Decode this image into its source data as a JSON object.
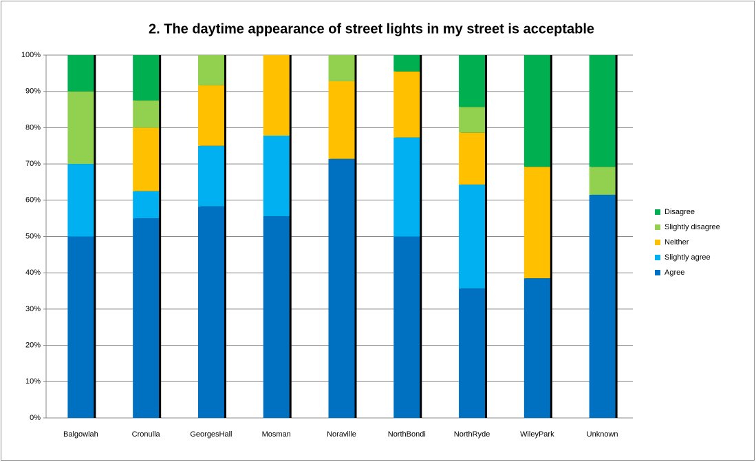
{
  "chart_data": {
    "type": "stacked_bar",
    "title": "2. The daytime appearance of street lights in my street is acceptable",
    "categories": [
      "Balgowlah",
      "Cronulla",
      "GeorgesHall",
      "Mosman",
      "Noraville",
      "NorthBondi",
      "NorthRyde",
      "WileyPark",
      "Unknown"
    ],
    "series": [
      {
        "name": "Agree",
        "color": "#0070c0",
        "values": [
          50,
          55,
          58.3,
          55.6,
          71.4,
          50,
          35.7,
          38.5,
          61.5
        ]
      },
      {
        "name": "Slightly agree",
        "color": "#00b0f0",
        "values": [
          20,
          7.5,
          16.7,
          22.2,
          0,
          27.3,
          28.6,
          0,
          0
        ]
      },
      {
        "name": "Neither",
        "color": "#ffc000",
        "values": [
          0,
          17.5,
          16.7,
          22.2,
          21.4,
          18.2,
          14.3,
          30.7,
          0
        ]
      },
      {
        "name": "Slightly disagree",
        "color": "#92d050",
        "values": [
          20,
          7.5,
          8.3,
          0,
          7.2,
          0,
          7.1,
          0,
          7.7
        ]
      },
      {
        "name": "Disagree",
        "color": "#00b050",
        "values": [
          10,
          12.5,
          0,
          0,
          0,
          4.5,
          14.3,
          30.8,
          30.8
        ]
      }
    ],
    "ylim": [
      0,
      100
    ],
    "yticks": [
      {
        "value": 0,
        "label": "0%"
      },
      {
        "value": 10,
        "label": "10%"
      },
      {
        "value": 20,
        "label": "20%"
      },
      {
        "value": 30,
        "label": "30%"
      },
      {
        "value": 40,
        "label": "40%"
      },
      {
        "value": 50,
        "label": "50%"
      },
      {
        "value": 60,
        "label": "60%"
      },
      {
        "value": 70,
        "label": "70%"
      },
      {
        "value": 80,
        "label": "80%"
      },
      {
        "value": 90,
        "label": "90%"
      },
      {
        "value": 100,
        "label": "100%"
      }
    ],
    "grid": true,
    "legend": "right"
  }
}
